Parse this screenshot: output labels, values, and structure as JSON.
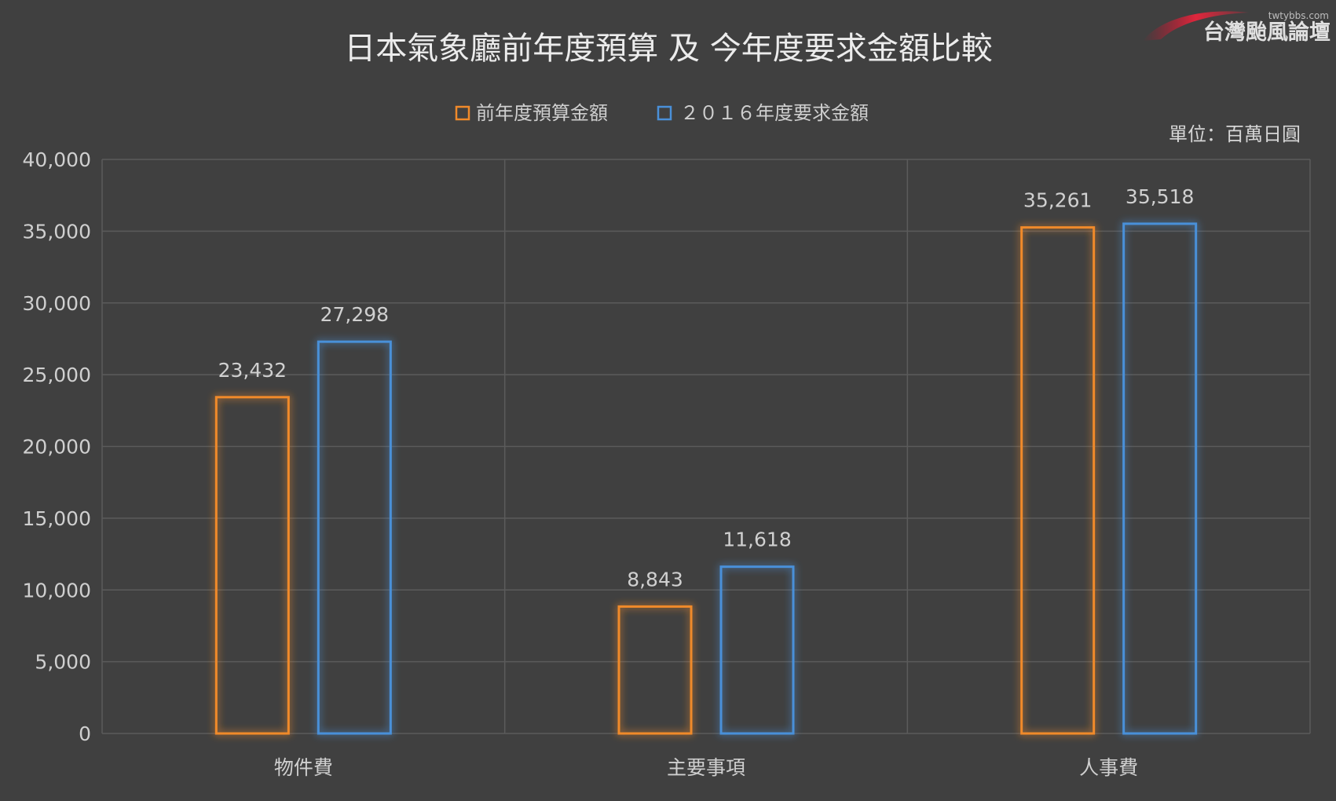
{
  "watermark": {
    "name": "台灣颱風論壇",
    "url": "twtybbs.com"
  },
  "unit_label": "單位：百萬日圓",
  "colors": {
    "background": "#404040",
    "series_prev": "#f08a2a",
    "series_2016": "#4a90d9",
    "grid": "#5b5b5b"
  },
  "chart_data": {
    "type": "bar",
    "title": "日本氣象廳前年度預算 及 今年度要求金額比較",
    "xlabel": "",
    "ylabel": "",
    "categories": [
      "物件費",
      "主要事項",
      "人事費"
    ],
    "series": [
      {
        "name": "前年度預算金額",
        "values": [
          23432,
          8843,
          35261
        ],
        "labels": [
          "23,432",
          "8,843",
          "35,261"
        ]
      },
      {
        "name": "２０１６年度要求金額",
        "values": [
          27298,
          11618,
          35518
        ],
        "labels": [
          "27,298",
          "11,618",
          "35,518"
        ]
      }
    ],
    "ylim": [
      0,
      40000
    ],
    "yticks": [
      0,
      5000,
      10000,
      15000,
      20000,
      25000,
      30000,
      35000,
      40000
    ],
    "ytick_labels": [
      "0",
      "5,000",
      "10,000",
      "15,000",
      "20,000",
      "25,000",
      "30,000",
      "35,000",
      "40,000"
    ],
    "grid": true,
    "legend_position": "top-center",
    "bar_style": "outlined-glow"
  }
}
